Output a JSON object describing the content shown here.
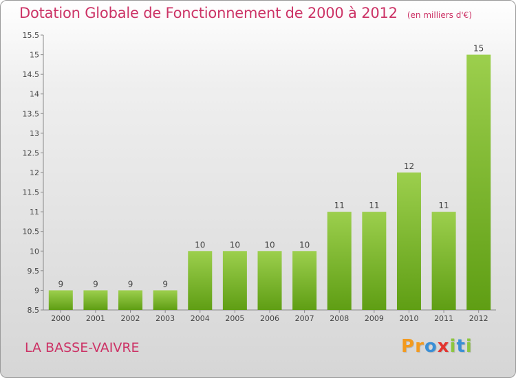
{
  "chart_data": {
    "type": "bar",
    "title": "Dotation Globale de Fonctionnement de 2000 à 2012",
    "subtitle": "(en milliers d'€)",
    "categories": [
      "2000",
      "2001",
      "2002",
      "2003",
      "2004",
      "2005",
      "2006",
      "2007",
      "2008",
      "2009",
      "2010",
      "2011",
      "2012"
    ],
    "values": [
      9,
      9,
      9,
      9,
      10,
      10,
      10,
      10,
      11,
      11,
      12,
      11,
      15
    ],
    "value_labels": [
      "9",
      "9",
      "9",
      "9",
      "10",
      "10",
      "10",
      "10",
      "11",
      "11",
      "12",
      "11",
      "15"
    ],
    "ylim": [
      8.5,
      15.5
    ],
    "yticks": [
      "8.5",
      "9",
      "9.5",
      "10",
      "10.5",
      "11",
      "11.5",
      "12",
      "12.5",
      "13",
      "13.5",
      "14",
      "14.5",
      "15",
      "15.5"
    ],
    "xlabel": "",
    "ylabel": "",
    "grid": false,
    "colors": {
      "bar_top": "#9ccf4d",
      "bar_bottom": "#5f9e14",
      "title": "#cc3366"
    }
  },
  "commune": "LA BASSE-VAIVRE",
  "logo": {
    "text": "Proxiti",
    "letters": [
      {
        "ch": "P",
        "color": "#f39a1e"
      },
      {
        "ch": "r",
        "color": "#f39a1e"
      },
      {
        "ch": "o",
        "color": "#3a8fd6"
      },
      {
        "ch": "x",
        "color": "#e3342f"
      },
      {
        "ch": "i",
        "color": "#8cc63f"
      },
      {
        "ch": "t",
        "color": "#3a8fd6"
      },
      {
        "ch": "i",
        "color": "#8cc63f"
      }
    ]
  }
}
